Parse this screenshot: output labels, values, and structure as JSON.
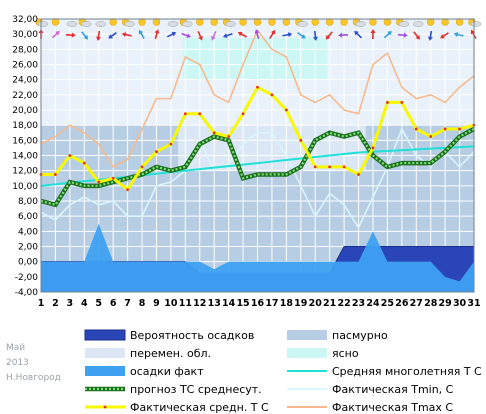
{
  "chart_data": {
    "type": "line",
    "ylim": [
      -4,
      32
    ],
    "yticks": [
      "32,00",
      "30,00",
      "28,00",
      "26,00",
      "24,00",
      "22,00",
      "20,00",
      "18,00",
      "16,00",
      "14,00",
      "12,00",
      "10,00",
      "8,00",
      "6,00",
      "4,00",
      "2,00",
      "0,00",
      "-2,00",
      "-4,00"
    ],
    "x": [
      1,
      2,
      3,
      4,
      5,
      6,
      7,
      8,
      9,
      10,
      11,
      12,
      13,
      14,
      15,
      16,
      17,
      18,
      19,
      20,
      21,
      22,
      23,
      24,
      25,
      26,
      27,
      28,
      29,
      30,
      31
    ],
    "background": {
      "overcast_ranges": [
        [
          1,
          10.5
        ],
        [
          23.5,
          31
        ]
      ],
      "partly_cloudy_ranges": [
        [
          10.5,
          23.5
        ]
      ],
      "clear_ranges": [
        [
          10.8,
          20.8
        ]
      ]
    },
    "series": [
      {
        "name": "Вероятность осадков",
        "color": "#2a45b8",
        "values": [
          0,
          0,
          0,
          0,
          0,
          0,
          0,
          0,
          0,
          0,
          0,
          -1.5,
          -1.5,
          -1.5,
          -1.5,
          -1.5,
          -1.5,
          -1.5,
          -1.5,
          -1.5,
          -1.5,
          2,
          2,
          2,
          2,
          2,
          2,
          2,
          2,
          2,
          2
        ]
      },
      {
        "name": "осадки факт",
        "color": "#3ea1f2",
        "values": [
          0,
          0,
          0,
          0,
          5,
          0,
          0,
          0,
          0,
          0,
          0,
          0,
          -1,
          0,
          0,
          0,
          0,
          0,
          0,
          0,
          0,
          0,
          0,
          4,
          0,
          0,
          0,
          0,
          -2,
          -2.6,
          0
        ]
      },
      {
        "name": "Средняя многолетняя Т С",
        "color": "#20e0d8",
        "values": [
          10.0,
          10.2,
          10.4,
          10.6,
          10.8,
          11.0,
          11.2,
          11.4,
          11.6,
          11.8,
          12.0,
          12.2,
          12.4,
          12.6,
          12.8,
          13.0,
          13.2,
          13.4,
          13.6,
          13.8,
          14.0,
          14.2,
          14.4,
          14.5,
          14.6,
          14.7,
          14.8,
          14.9,
          15.0,
          15.1,
          15.2
        ]
      },
      {
        "name": "Фактическая Tmin, С",
        "color": "#d8f6ff",
        "values": [
          6.5,
          5.5,
          7.5,
          8.5,
          7.5,
          8.0,
          6.0,
          6.0,
          10.0,
          10.5,
          12.0,
          16.0,
          12.0,
          13.0,
          15.5,
          17.0,
          17.0,
          14.0,
          10.0,
          6.0,
          9.0,
          7.5,
          4.5,
          8.5,
          12.5,
          17.5,
          14.0,
          12.5,
          14.5,
          12.5,
          14.5
        ]
      },
      {
        "name": "Фактическая Tmax C",
        "color": "#f7b98d",
        "values": [
          15.5,
          16.5,
          18.0,
          17.0,
          15.5,
          12.5,
          13.5,
          17.5,
          21.5,
          21.5,
          27.0,
          26.0,
          22.0,
          21.0,
          26.0,
          30.5,
          28.0,
          27.0,
          22.0,
          21.0,
          22.0,
          20.0,
          19.5,
          26.0,
          27.5,
          23.0,
          21.5,
          22.0,
          21.0,
          23.0,
          24.5
        ]
      },
      {
        "name": "прогноз ТС среднесут.",
        "color": "#2f9b2f",
        "values": [
          8.0,
          7.5,
          10.5,
          10.0,
          10.0,
          10.5,
          11.0,
          11.5,
          12.5,
          12.0,
          12.5,
          15.5,
          16.5,
          16.0,
          11.0,
          11.5,
          11.5,
          11.5,
          12.5,
          16.0,
          17.0,
          16.5,
          17.0,
          14.0,
          12.5,
          13.0,
          13.0,
          13.0,
          14.5,
          16.5,
          17.5
        ]
      },
      {
        "name": "Фактическая средн. Т С",
        "color": "#f8f800",
        "values": [
          11.5,
          11.5,
          14.0,
          13.0,
          10.5,
          11.0,
          9.5,
          12.5,
          14.5,
          15.5,
          19.5,
          19.5,
          17.0,
          16.5,
          19.5,
          23.0,
          22.0,
          20.0,
          16.0,
          12.5,
          12.5,
          12.5,
          11.5,
          15.0,
          21.0,
          21.0,
          17.5,
          16.5,
          17.5,
          17.5,
          18.0
        ]
      }
    ],
    "legend": [
      {
        "label": "Вероятность осадков",
        "kind": "fill",
        "color": "#2a45b8"
      },
      {
        "label": "пасмурно",
        "kind": "fill",
        "color": "#b7cde3"
      },
      {
        "label": "перемен. обл.",
        "kind": "fill",
        "color": "#dbe7f4"
      },
      {
        "label": "ясно",
        "kind": "fill",
        "color": "#cdf7f5"
      },
      {
        "label": "осадки факт",
        "kind": "fill",
        "color": "#3ea1f2"
      },
      {
        "label": "Средняя многолетняя Т С",
        "kind": "line",
        "color": "#20e0d8"
      },
      {
        "label": "прогноз ТС среднесут.",
        "kind": "dotted",
        "color": "#2f9b2f"
      },
      {
        "label": "Фактическая Tmin, С",
        "kind": "line",
        "color": "#d8f6ff"
      },
      {
        "label": "Фактическая средн. Т С",
        "kind": "thick",
        "color": "#f8f800"
      },
      {
        "label": "Фактическая Tmax C",
        "kind": "line",
        "color": "#f7b98d"
      }
    ],
    "weather_icons": [
      "sun-cloud",
      "sun",
      "cloud",
      "sun-cloud",
      "cloud",
      "sun",
      "sun-cloud",
      "sun",
      "sun",
      "cloud",
      "sun-cloud",
      "sun",
      "sun",
      "sun-cloud",
      "sun",
      "sun",
      "sun",
      "sun",
      "sun-cloud",
      "sun",
      "sun",
      "sun",
      "sun-cloud",
      "sun",
      "sun",
      "sun-cloud",
      "cloud",
      "sun",
      "sun",
      "sun",
      "sun-cloud"
    ],
    "wind_icons_top": [
      "#e03030",
      "#cc6ed0",
      "#e03030",
      "#30a0e0",
      "#e03030",
      "#2a4fd0",
      "#e03030",
      "#30a0e0",
      "#e03030",
      "#2a4fd0",
      "#a050e0",
      "#e03030",
      "#cc6ed0",
      "#2a4fd0",
      "#e03030",
      "#a050e0",
      "#e03030",
      "#2a4fd0",
      "#30a0e0",
      "#2a4fd0",
      "#e03030",
      "#a050e0",
      "#2a4fd0",
      "#e03030",
      "#30a0e0",
      "#a050e0",
      "#e03030",
      "#2a4fd0",
      "#e03030",
      "#30a0e0",
      "#e03030"
    ]
  },
  "footer": {
    "month": "Май",
    "year": "2013",
    "city": "Н.Новгород"
  }
}
